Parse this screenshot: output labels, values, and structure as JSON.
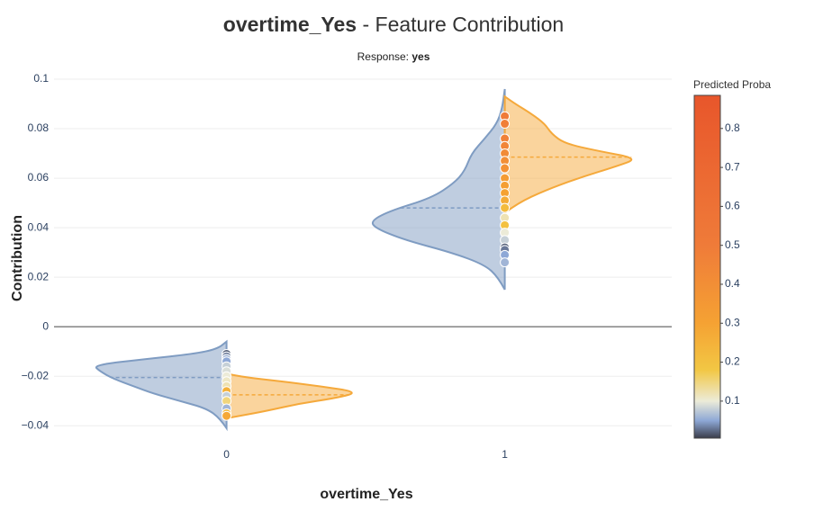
{
  "chart_data": {
    "type": "violin",
    "title_bold": "overtime_Yes",
    "title": "- Feature Contribution",
    "subtitle_label": "Response:",
    "response": "yes",
    "x_label": "overtime_Yes",
    "y_label": "Contribution",
    "xlim": [
      -0.62,
      1.6
    ],
    "xticks": [
      0,
      1
    ],
    "ylim": [
      -0.045,
      0.1
    ],
    "yticks": [
      {
        "value": -0.04,
        "label": "−0.04"
      },
      {
        "value": -0.02,
        "label": "−0.02"
      },
      0,
      0.02,
      0.04,
      0.06,
      0.08,
      0.1
    ],
    "grid": true,
    "violins": [
      {
        "x": 0,
        "side": "left",
        "color": "#7f9cc2",
        "y": [
          -0.041,
          -0.037,
          -0.033,
          -0.03,
          -0.027,
          -0.024,
          -0.021,
          -0.018,
          -0.0155,
          -0.013,
          -0.011,
          -0.009,
          -0.006
        ],
        "density": [
          0,
          0.05,
          0.15,
          0.35,
          0.55,
          0.7,
          0.85,
          0.95,
          1.0,
          0.6,
          0.25,
          0.07,
          0
        ],
        "median": -0.0205
      },
      {
        "x": 0,
        "side": "right",
        "color": "#f5a93b",
        "y": [
          -0.037,
          -0.036,
          -0.034,
          -0.031,
          -0.029,
          -0.0265,
          -0.024,
          -0.022,
          -0.0205,
          -0.019
        ],
        "density": [
          0,
          0.1,
          0.3,
          0.55,
          0.8,
          1.0,
          0.7,
          0.4,
          0.15,
          0
        ],
        "median": -0.0275
      },
      {
        "x": 1,
        "side": "left",
        "color": "#7f9cc2",
        "y": [
          0.015,
          0.02,
          0.025,
          0.03,
          0.035,
          0.04,
          0.043,
          0.047,
          0.052,
          0.058,
          0.063,
          0.07,
          0.076,
          0.082,
          0.088,
          0.096
        ],
        "density": [
          0,
          0.05,
          0.15,
          0.4,
          0.75,
          0.98,
          1.0,
          0.85,
          0.55,
          0.38,
          0.3,
          0.25,
          0.15,
          0.06,
          0.02,
          0
        ],
        "median": 0.048
      },
      {
        "x": 1,
        "side": "right",
        "color": "#f5a93b",
        "y": [
          0.046,
          0.05,
          0.055,
          0.06,
          0.065,
          0.068,
          0.071,
          0.074,
          0.078,
          0.082,
          0.086,
          0.09,
          0.093
        ],
        "density": [
          0,
          0.1,
          0.3,
          0.55,
          0.85,
          1.0,
          0.7,
          0.45,
          0.35,
          0.3,
          0.2,
          0.08,
          0
        ],
        "median": 0.0685
      }
    ],
    "points": [
      {
        "x": 0,
        "y": [
          -0.011,
          -0.012,
          -0.013,
          -0.014,
          -0.016,
          -0.018,
          -0.02,
          -0.022,
          -0.024,
          -0.026,
          -0.028,
          -0.03,
          -0.033,
          -0.035,
          -0.036
        ],
        "proba": [
          0.02,
          0.03,
          0.06,
          0.05,
          0.08,
          0.09,
          0.1,
          0.11,
          0.12,
          0.25,
          0.08,
          0.15,
          0.06,
          0.22,
          0.28
        ]
      },
      {
        "x": 1,
        "y": [
          0.085,
          0.082,
          0.076,
          0.073,
          0.07,
          0.067,
          0.064,
          0.06,
          0.057,
          0.054,
          0.051,
          0.048,
          0.044,
          0.041,
          0.038,
          0.035,
          0.032,
          0.031,
          0.029,
          0.026
        ],
        "proba": [
          0.5,
          0.48,
          0.47,
          0.45,
          0.42,
          0.4,
          0.38,
          0.33,
          0.32,
          0.3,
          0.27,
          0.22,
          0.12,
          0.2,
          0.1,
          0.08,
          0.02,
          0.03,
          0.05,
          0.06
        ]
      }
    ],
    "colorbar_title": "Predicted Proba",
    "clim": [
      0.005,
      0.885
    ],
    "colorbar_ticks": [
      0.1,
      0.2,
      0.3,
      0.4,
      0.5,
      0.6,
      0.7,
      0.8
    ],
    "colorscale": [
      [
        0.005,
        "#3a3d4a"
      ],
      [
        0.05,
        "#8ea8d6"
      ],
      [
        0.1,
        "#ecebd8"
      ],
      [
        0.18,
        "#f2c744"
      ],
      [
        0.3,
        "#f5a233"
      ],
      [
        0.5,
        "#ef7b39"
      ],
      [
        0.885,
        "#e8562b"
      ]
    ]
  }
}
